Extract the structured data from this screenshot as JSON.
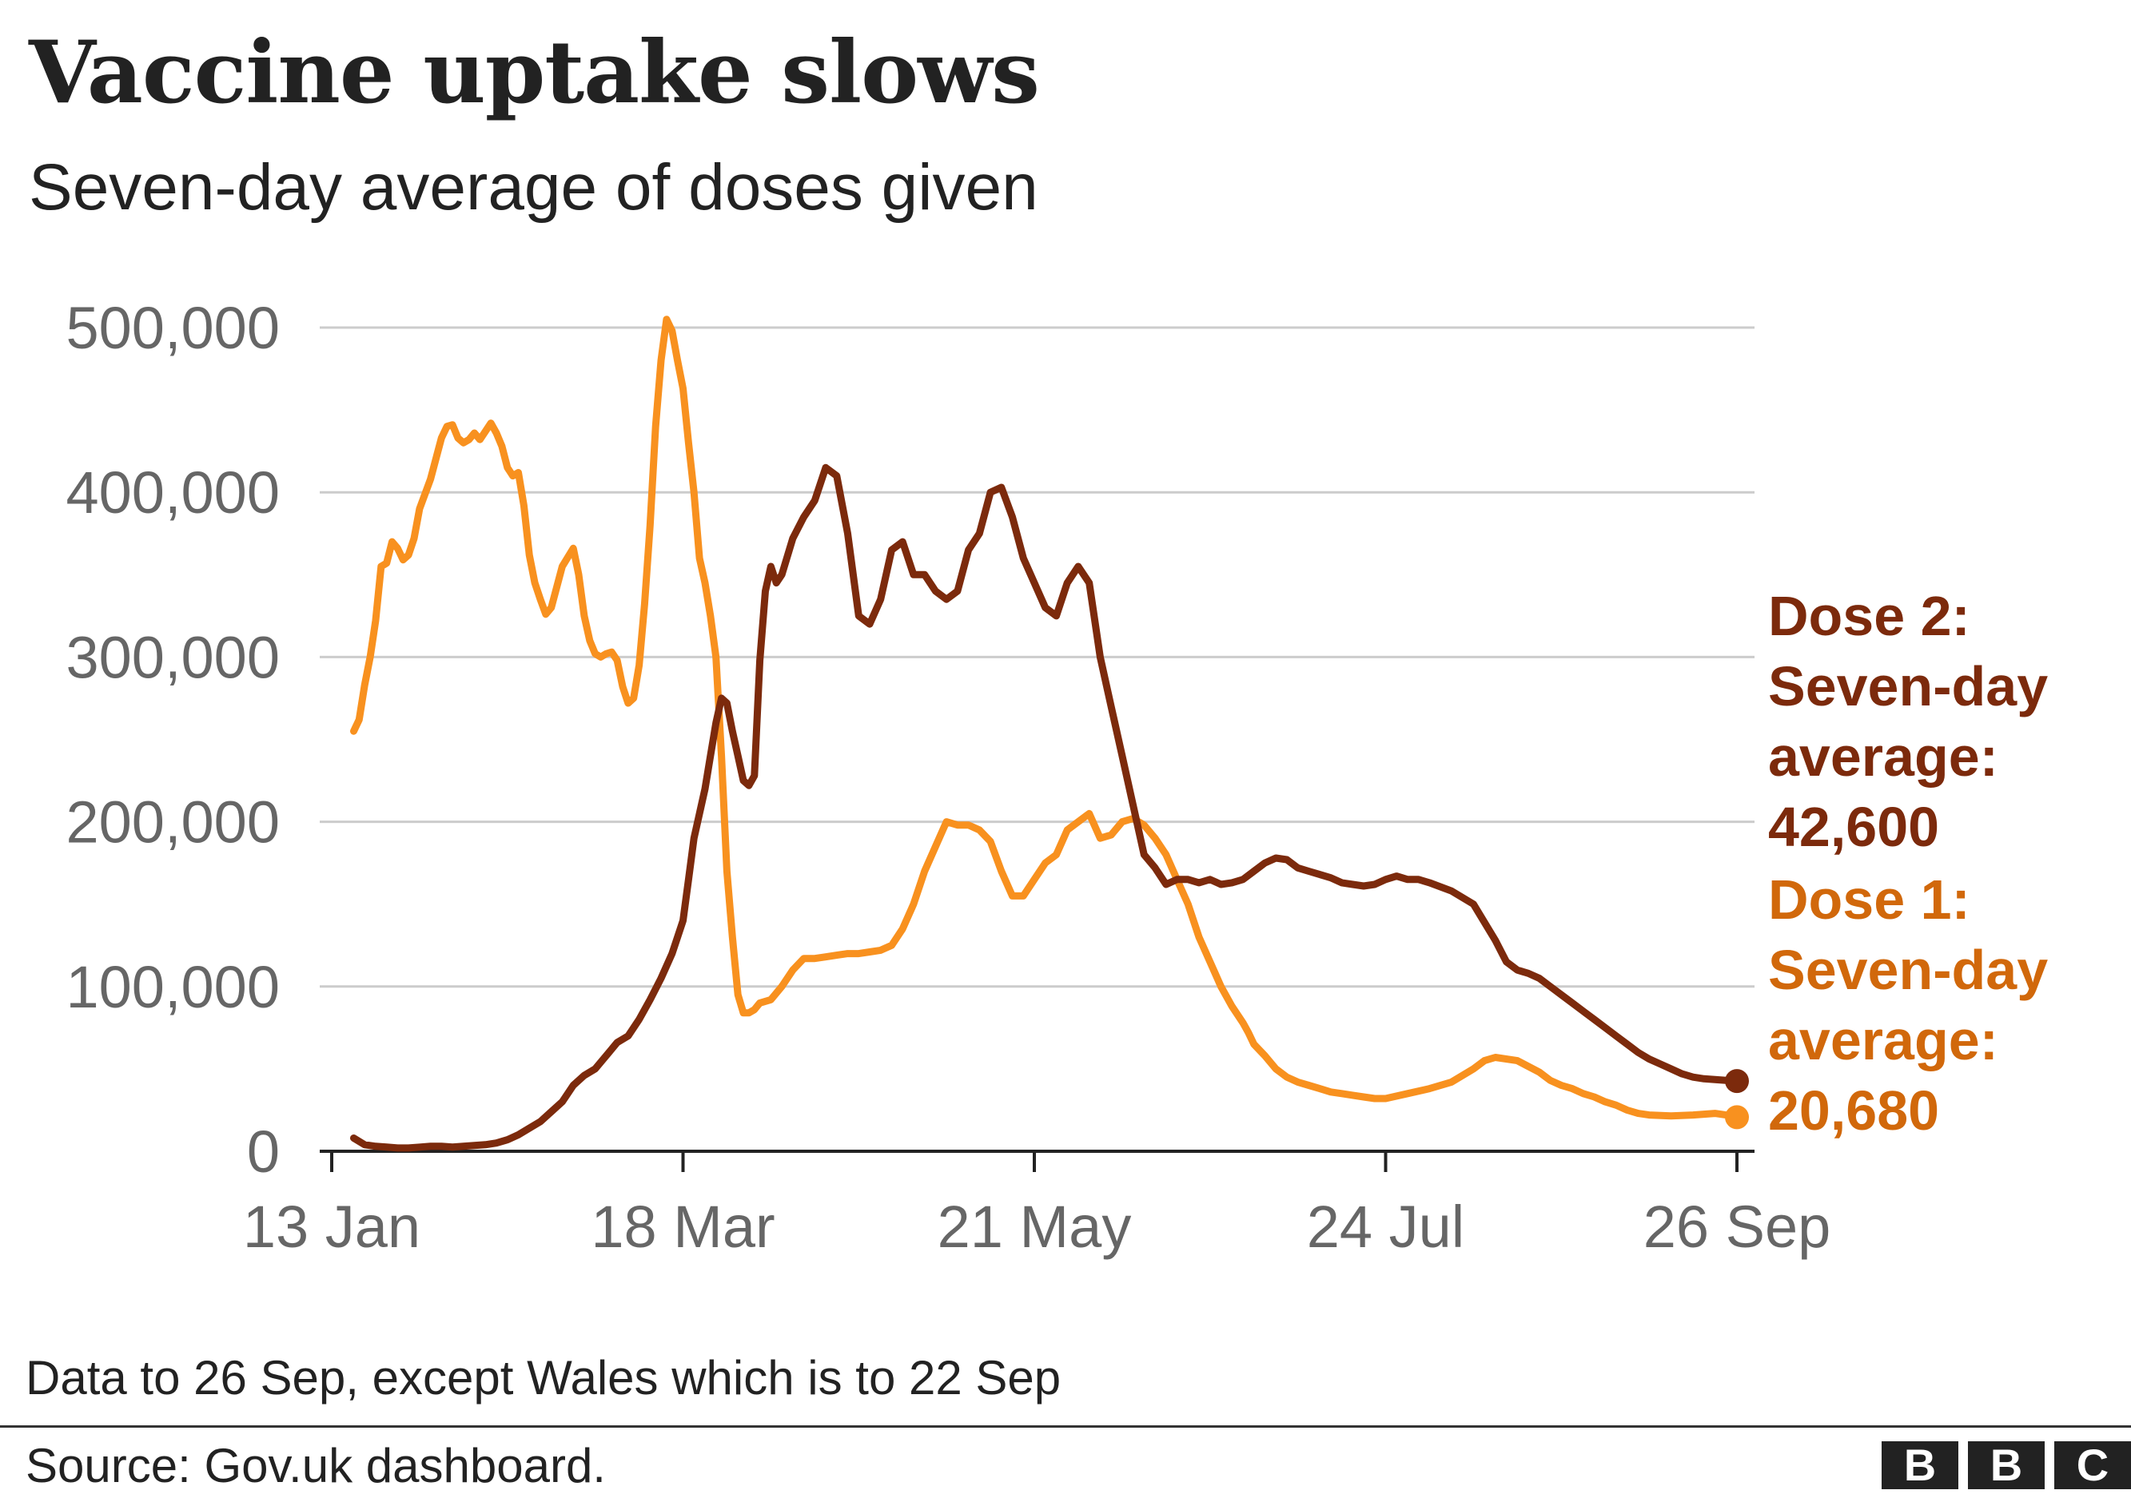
{
  "title": "Vaccine uptake slows",
  "subtitle": "Seven-day average of doses given",
  "note": "Data to 26 Sep, except Wales which is to 22 Sep",
  "source": "Source: Gov.uk dashboard.",
  "logo": [
    "B",
    "B",
    "C"
  ],
  "colors": {
    "dose1": "#f8911f",
    "dose2": "#7c2a0c",
    "dose1_label": "#d1680b",
    "grid": "#cccccc",
    "axis": "#222222",
    "tick_text": "#666666"
  },
  "chart_data": {
    "type": "line",
    "title": "Vaccine uptake slows",
    "subtitle": "Seven-day average of doses given",
    "xlabel": "",
    "ylabel": "",
    "x_unit": "days since 13 Jan",
    "xlim": [
      0,
      256
    ],
    "ylim": [
      0,
      500000
    ],
    "grid": true,
    "y_ticks": [
      0,
      100000,
      200000,
      300000,
      400000,
      500000
    ],
    "y_tick_labels": [
      "0",
      "100,000",
      "200,000",
      "300,000",
      "400,000",
      "500,000"
    ],
    "x_ticks": [
      0,
      64,
      128,
      192,
      256
    ],
    "x_tick_labels": [
      "13 Jan",
      "18 Mar",
      "21 May",
      "24 Jul",
      "26 Sep"
    ],
    "series": [
      {
        "name": "Dose 1",
        "label_lines": [
          "Dose 1:",
          "Seven-day",
          "average:",
          "20,680"
        ],
        "end_value": 20680,
        "x": [
          4,
          5,
          6,
          7,
          8,
          9,
          10,
          11,
          12,
          13,
          14,
          15,
          16,
          18,
          20,
          21,
          22,
          23,
          24,
          25,
          26,
          27,
          28,
          29,
          30,
          31,
          32,
          33,
          34,
          35,
          36,
          37,
          38,
          39,
          40,
          42,
          44,
          45,
          46,
          47,
          48,
          49,
          50,
          51,
          52,
          53,
          54,
          55,
          56,
          57,
          58,
          59,
          60,
          61,
          62,
          63,
          64,
          65,
          66,
          67,
          68,
          69,
          70,
          71,
          72,
          73,
          74,
          75,
          76,
          77,
          78,
          80,
          82,
          84,
          86,
          88,
          90,
          92,
          94,
          96,
          98,
          100,
          102,
          104,
          106,
          108,
          110,
          112,
          114,
          116,
          118,
          120,
          122,
          124,
          126,
          128,
          130,
          132,
          134,
          136,
          138,
          140,
          142,
          144,
          146,
          148,
          150,
          152,
          154,
          156,
          158,
          160,
          162,
          164,
          166,
          167,
          168,
          170,
          172,
          174,
          176,
          178,
          180,
          182,
          184,
          186,
          188,
          190,
          192,
          196,
          200,
          204,
          208,
          210,
          212,
          216,
          220,
          222,
          224,
          226,
          228,
          230,
          232,
          234,
          236,
          238,
          240,
          244,
          248,
          252,
          254,
          256
        ],
        "values": [
          255000,
          262000,
          283000,
          300000,
          322000,
          355000,
          357000,
          370000,
          366000,
          359000,
          362000,
          372000,
          390000,
          408000,
          433000,
          440000,
          441000,
          433000,
          430000,
          432000,
          436000,
          432000,
          437000,
          442000,
          436000,
          428000,
          415000,
          410000,
          412000,
          392000,
          362000,
          345000,
          335000,
          326000,
          330000,
          355000,
          366000,
          350000,
          325000,
          310000,
          302000,
          300000,
          302000,
          303000,
          298000,
          282000,
          272000,
          275000,
          295000,
          332000,
          380000,
          440000,
          480000,
          505000,
          498000,
          480000,
          463000,
          430000,
          400000,
          360000,
          345000,
          325000,
          300000,
          240000,
          170000,
          130000,
          95000,
          84000,
          84000,
          86000,
          90000,
          92000,
          100000,
          110000,
          117000,
          117000,
          118000,
          119000,
          120000,
          120000,
          121000,
          122000,
          125000,
          135000,
          150000,
          170000,
          185000,
          200000,
          198000,
          198000,
          195000,
          188000,
          170000,
          155000,
          155000,
          165000,
          175000,
          180000,
          195000,
          200000,
          205000,
          190000,
          192000,
          200000,
          202000,
          198000,
          190000,
          180000,
          165000,
          150000,
          130000,
          115000,
          100000,
          88000,
          78000,
          72000,
          65000,
          58000,
          50000,
          45000,
          42000,
          40000,
          38000,
          36000,
          35000,
          34000,
          33000,
          32000,
          32000,
          35000,
          38000,
          42000,
          50000,
          55000,
          57000,
          55000,
          48000,
          43000,
          40000,
          38000,
          35000,
          33000,
          30000,
          28000,
          25000,
          23000,
          22000,
          21500,
          22000,
          23000,
          22000,
          20680
        ]
      },
      {
        "name": "Dose 2",
        "label_lines": [
          "Dose 2:",
          "Seven-day",
          "average:",
          "42,600"
        ],
        "end_value": 42600,
        "x": [
          4,
          6,
          8,
          10,
          12,
          14,
          16,
          18,
          20,
          22,
          24,
          26,
          28,
          30,
          32,
          34,
          36,
          38,
          40,
          42,
          44,
          46,
          48,
          50,
          52,
          54,
          56,
          58,
          60,
          62,
          64,
          65,
          66,
          67,
          68,
          69,
          70,
          71,
          72,
          73,
          74,
          75,
          76,
          77,
          78,
          79,
          80,
          81,
          82,
          84,
          86,
          88,
          90,
          92,
          94,
          96,
          98,
          100,
          102,
          104,
          106,
          108,
          110,
          112,
          114,
          116,
          118,
          120,
          122,
          124,
          126,
          128,
          130,
          132,
          134,
          136,
          138,
          140,
          142,
          144,
          146,
          148,
          150,
          152,
          154,
          156,
          158,
          160,
          162,
          164,
          166,
          168,
          170,
          172,
          174,
          176,
          178,
          180,
          182,
          184,
          186,
          188,
          190,
          192,
          194,
          196,
          198,
          200,
          204,
          208,
          212,
          214,
          216,
          218,
          220,
          222,
          224,
          226,
          228,
          230,
          232,
          234,
          236,
          238,
          240,
          242,
          244,
          246,
          248,
          250,
          252,
          254,
          256
        ],
        "values": [
          8000,
          4000,
          3000,
          2500,
          2000,
          2000,
          2500,
          3000,
          3000,
          2500,
          3000,
          3500,
          4000,
          5000,
          7000,
          10000,
          14000,
          18000,
          24000,
          30000,
          40000,
          46000,
          50000,
          58000,
          66000,
          70000,
          80000,
          92000,
          105000,
          120000,
          140000,
          165000,
          190000,
          205000,
          220000,
          240000,
          260000,
          275000,
          272000,
          255000,
          240000,
          225000,
          222000,
          228000,
          298000,
          340000,
          355000,
          345000,
          350000,
          372000,
          385000,
          395000,
          415000,
          410000,
          375000,
          325000,
          320000,
          335000,
          365000,
          370000,
          350000,
          350000,
          340000,
          335000,
          340000,
          365000,
          375000,
          400000,
          403000,
          385000,
          360000,
          345000,
          330000,
          325000,
          345000,
          355000,
          345000,
          300000,
          270000,
          240000,
          210000,
          180000,
          172000,
          162000,
          165000,
          165000,
          163000,
          165000,
          162000,
          163000,
          165000,
          170000,
          175000,
          178000,
          177000,
          172000,
          170000,
          168000,
          166000,
          163000,
          162000,
          161000,
          162000,
          165000,
          167000,
          165000,
          165000,
          163000,
          158000,
          150000,
          128000,
          115000,
          110000,
          108000,
          105000,
          100000,
          95000,
          90000,
          85000,
          80000,
          75000,
          70000,
          65000,
          60000,
          56000,
          53000,
          50000,
          47000,
          45000,
          44000,
          43500,
          43000,
          42600
        ]
      }
    ]
  }
}
